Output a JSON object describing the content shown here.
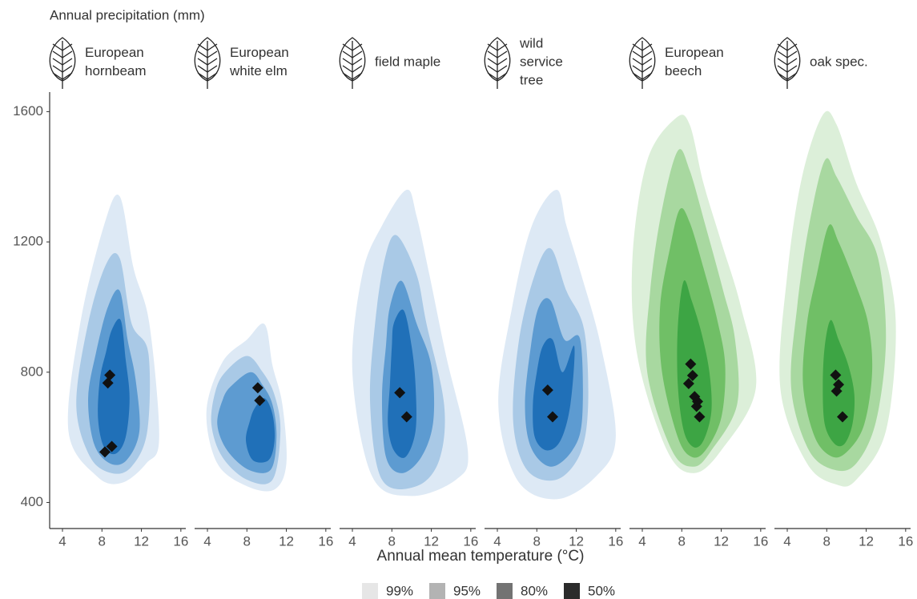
{
  "chart_data": {
    "type": "density",
    "title": "Annual precipitation (mm)",
    "x_label": "Annual mean temperature (°C)",
    "ylim": [
      320,
      1660
    ],
    "yticks": [
      400,
      800,
      1200,
      1600
    ],
    "xlim": [
      2.7,
      16.5
    ],
    "xticks": [
      4,
      8,
      12,
      16
    ],
    "point_color": "#111111",
    "legend": {
      "items": [
        {
          "label": "99%",
          "color": "#e6e6e6"
        },
        {
          "label": "95%",
          "color": "#b3b3b3"
        },
        {
          "label": "80%",
          "color": "#737373"
        },
        {
          "label": "50%",
          "color": "#2b2b2b"
        }
      ]
    },
    "panels": [
      {
        "name_lines": [
          "European",
          "hornbeam"
        ],
        "colors": [
          "#dde9f5",
          "#a9c9e6",
          "#5d9bd1",
          "#2070b8"
        ],
        "contours": [
          {
            "x": [
              8.2,
              9.8,
              11.2,
              12.8,
              13.8,
              12.5,
              10,
              7.5,
              4.6,
              5.8
            ],
            "y": [
              1250,
              1340,
              1120,
              950,
              600,
              520,
              460,
              480,
              620,
              950
            ]
          },
          {
            "x": [
              8.4,
              9.8,
              11,
              12.7,
              12.6,
              11,
              9,
              6.8,
              5.4,
              6.6
            ],
            "y": [
              1130,
              1150,
              950,
              860,
              620,
              510,
              490,
              540,
              700,
              950
            ]
          },
          {
            "x": [
              8.6,
              9.8,
              10.6,
              11.4,
              11.8,
              10.5,
              8.8,
              7.2,
              6.6,
              7.4
            ],
            "y": [
              1000,
              1050,
              900,
              780,
              620,
              530,
              520,
              580,
              720,
              860
            ]
          },
          {
            "x": [
              9,
              9.9,
              10.4,
              10.8,
              10.4,
              9.4,
              8.2,
              7.6,
              7.8,
              8.4
            ],
            "y": [
              930,
              960,
              840,
              720,
              600,
              550,
              570,
              660,
              780,
              860
            ]
          }
        ],
        "points": {
          "x": [
            8.8,
            8.6,
            9.0,
            8.3
          ],
          "y": [
            791,
            767,
            572,
            555
          ]
        }
      },
      {
        "name_lines": [
          "European",
          "white elm"
        ],
        "colors": [
          "#dde9f5",
          "#a9c9e6",
          "#5d9bd1",
          "#2070b8"
        ],
        "contours": [
          {
            "x": [
              5.5,
              8,
              9.8,
              10.6,
              11.6,
              12,
              10.8,
              8,
              5,
              3.9
            ],
            "y": [
              830,
              900,
              947,
              820,
              700,
              520,
              440,
              450,
              520,
              680
            ]
          },
          {
            "x": [
              5.8,
              8,
              9.6,
              10.8,
              11.4,
              10.6,
              8,
              5.5,
              4.4,
              4.8
            ],
            "y": [
              800,
              850,
              800,
              730,
              620,
              470,
              470,
              540,
              640,
              740
            ]
          },
          {
            "x": [
              6.5,
              8.4,
              9.6,
              10.6,
              11,
              10.4,
              8.2,
              6,
              5,
              5.6
            ],
            "y": [
              760,
              800,
              760,
              700,
              600,
              500,
              500,
              560,
              640,
              720
            ]
          },
          {
            "x": [
              8.8,
              9.8,
              10.6,
              10.8,
              10.2,
              8.6,
              7.9,
              8.3
            ],
            "y": [
              690,
              720,
              670,
              590,
              530,
              530,
              590,
              650
            ]
          }
        ],
        "points": {
          "x": [
            9.1,
            9.3
          ],
          "y": [
            752,
            713
          ]
        }
      },
      {
        "name_lines": [
          "field maple"
        ],
        "colors": [
          "#dde9f5",
          "#a9c9e6",
          "#5d9bd1",
          "#2070b8"
        ],
        "contours": [
          {
            "x": [
              7,
              9.5,
              10.5,
              11.8,
              13.5,
              15.7,
              14.5,
              10,
              6,
              4.0,
              5
            ],
            "y": [
              1250,
              1360,
              1280,
              1100,
              850,
              560,
              470,
              420,
              480,
              800,
              1100
            ]
          },
          {
            "x": [
              7.3,
              8.5,
              10.5,
              11.5,
              13.3,
              12.8,
              10.5,
              7,
              5.8,
              6.3
            ],
            "y": [
              1150,
              1220,
              1100,
              950,
              700,
              530,
              450,
              470,
              700,
              950
            ]
          },
          {
            "x": [
              7.8,
              9,
              10.5,
              12,
              12.2,
              11,
              9,
              7.4,
              7,
              7.4
            ],
            "y": [
              1000,
              1080,
              950,
              820,
              650,
              540,
              490,
              540,
              720,
              880
            ]
          },
          {
            "x": [
              8.2,
              9.2,
              10,
              10.4,
              10.4,
              9.4,
              8.2,
              7.6,
              7.8,
              8.0
            ],
            "y": [
              950,
              990,
              880,
              760,
              620,
              540,
              560,
              640,
              760,
              880
            ]
          }
        ],
        "points": {
          "x": [
            8.8,
            9.5
          ],
          "y": [
            737,
            663
          ]
        }
      },
      {
        "name_lines": [
          "wild",
          "service",
          "tree"
        ],
        "colors": [
          "#dde9f5",
          "#a9c9e6",
          "#5d9bd1",
          "#2070b8"
        ],
        "contours": [
          {
            "x": [
              7.5,
              10,
              11,
              12.5,
              14.5,
              16,
              14,
              10,
              6,
              4.1,
              5.5
            ],
            "y": [
              1250,
              1360,
              1250,
              1100,
              880,
              600,
              480,
              410,
              470,
              700,
              1000
            ]
          },
          {
            "x": [
              7.8,
              9.4,
              11,
              12.8,
              13.2,
              12.4,
              10,
              7,
              5.6,
              6.2
            ],
            "y": [
              1100,
              1180,
              1050,
              930,
              700,
              550,
              470,
              500,
              650,
              900
            ]
          },
          {
            "x": [
              8.2,
              9.4,
              10.8,
              12.4,
              12.6,
              11.6,
              9.4,
              7.4,
              6.8,
              7.4
            ],
            "y": [
              1000,
              1020,
              900,
              900,
              660,
              560,
              510,
              570,
              700,
              880
            ]
          },
          {
            "x": [
              8.6,
              9.6,
              10.6,
              11.8,
              11.4,
              10.4,
              9.0,
              7.8,
              7.6,
              8.0
            ],
            "y": [
              880,
              900,
              800,
              880,
              700,
              590,
              560,
              600,
              700,
              800
            ]
          }
        ],
        "points": {
          "x": [
            9.1,
            9.6
          ],
          "y": [
            745,
            663
          ]
        }
      },
      {
        "name_lines": [
          "European",
          "beech"
        ],
        "colors": [
          "#dcefd9",
          "#a8d8a0",
          "#70bf66",
          "#3da544"
        ],
        "contours": [
          {
            "x": [
              7.4,
              8.8,
              10.2,
              12,
              14,
              15.5,
              12,
              9.2,
              6.5,
              3.5,
              3,
              4.5
            ],
            "y": [
              1580,
              1560,
              1380,
              1200,
              1000,
              750,
              560,
              490,
              560,
              850,
              1150,
              1450
            ]
          },
          {
            "x": [
              7.6,
              8.8,
              10.4,
              12.2,
              13.4,
              13.6,
              11,
              9.2,
              7,
              4.5,
              4.8,
              6
            ],
            "y": [
              1480,
              1420,
              1250,
              1050,
              900,
              700,
              560,
              510,
              560,
              800,
              1050,
              1300
            ]
          },
          {
            "x": [
              7.8,
              8.8,
              10.2,
              11.6,
              12.4,
              12,
              10.4,
              9.0,
              7.6,
              6,
              5.8,
              6.8
            ],
            "y": [
              1300,
              1260,
              1120,
              960,
              820,
              660,
              560,
              540,
              600,
              800,
              1000,
              1180
            ]
          },
          {
            "x": [
              8.2,
              9,
              10,
              10.8,
              11,
              10.2,
              9.2,
              8.2,
              7.6,
              7.6
            ],
            "y": [
              1080,
              1020,
              920,
              800,
              680,
              590,
              570,
              620,
              760,
              940
            ]
          }
        ],
        "points": {
          "x": [
            8.9,
            9.1,
            8.7,
            9.3,
            9.6,
            9.5,
            9.8
          ],
          "y": [
            825,
            790,
            765,
            725,
            710,
            695,
            663
          ]
        }
      },
      {
        "name_lines": [
          "oak spec."
        ],
        "colors": [
          "#dcefd9",
          "#a8d8a0",
          "#70bf66",
          "#3da544"
        ],
        "contours": [
          {
            "x": [
              7.6,
              9,
              11,
              13.5,
              15,
              14,
              11,
              9,
              6,
              3.3,
              4,
              5.5
            ],
            "y": [
              1590,
              1560,
              1380,
              1200,
              950,
              620,
              470,
              455,
              520,
              750,
              1100,
              1400
            ]
          },
          {
            "x": [
              7.8,
              9,
              11,
              13.2,
              14,
              13,
              11,
              8.8,
              6.2,
              4.4,
              5,
              6.2
            ],
            "y": [
              1450,
              1400,
              1280,
              1150,
              900,
              650,
              520,
              500,
              560,
              750,
              1000,
              1250
            ]
          },
          {
            "x": [
              8.2,
              9.2,
              10.8,
              12.2,
              12.6,
              11.8,
              10.2,
              8.6,
              6.8,
              5.6,
              6.0,
              7.0
            ],
            "y": [
              1250,
              1200,
              1080,
              950,
              800,
              640,
              560,
              540,
              600,
              760,
              950,
              1100
            ]
          },
          {
            "x": [
              8.4,
              9.2,
              10.2,
              10.8,
              10.6,
              9.8,
              8.8,
              7.8,
              7.6,
              7.8
            ],
            "y": [
              960,
              900,
              820,
              730,
              640,
              580,
              580,
              640,
              760,
              880
            ]
          }
        ],
        "points": {
          "x": [
            8.9,
            9.2,
            9.0,
            9.6
          ],
          "y": [
            791,
            762,
            742,
            663
          ]
        }
      }
    ]
  }
}
